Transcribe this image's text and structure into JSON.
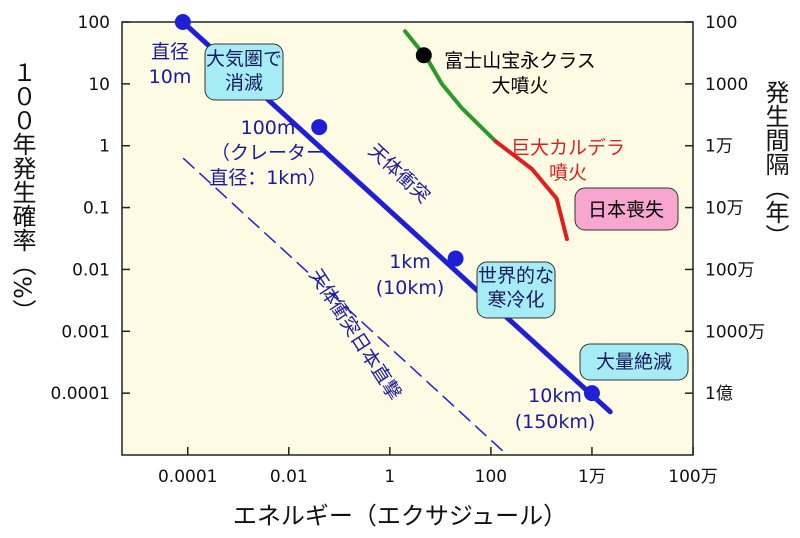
{
  "chart_data": {
    "type": "line",
    "xlabel": "エネルギー（エクサジュール）",
    "ylabel": "１００年発生確率（%）",
    "y2label": "発生間隔（年）",
    "log_x": true,
    "log_y": true,
    "xlim": [
      5e-06,
      1000000
    ],
    "ylim": [
      1e-05,
      100
    ],
    "y2lim": [
      1000000000,
      100
    ],
    "xticks": [
      0.0001,
      0.01,
      1,
      100,
      {
        "value": 10000,
        "label": "1万"
      },
      {
        "value": 1000000,
        "label": "100万"
      }
    ],
    "yticks": [
      100,
      10,
      1,
      0.1,
      0.01,
      0.001,
      0.0001
    ],
    "y2ticks": [
      100,
      1000,
      {
        "value": 10000,
        "label": "1万"
      },
      {
        "value": 100000,
        "label": "10万"
      },
      {
        "value": 1000000,
        "label": "100万"
      },
      {
        "value": 10000000,
        "label": "1000万"
      },
      {
        "value": 100000000,
        "label": "1億"
      }
    ],
    "background": "#fdfbe3",
    "series": [
      {
        "x": [
          8e-05,
          23000
        ],
        "values": [
          100,
          5e-05
        ],
        "color": "#1f1fd6",
        "width": 5
      },
      {
        "x": [
          2,
          5.4,
          10.7,
          27,
          125
        ],
        "values": [
          71,
          26,
          10,
          4,
          1.17
        ],
        "color": "#2a9a2a",
        "width": 4
      },
      {
        "x": [
          125,
          650,
          2000,
          3200
        ],
        "values": [
          1.17,
          0.42,
          0.14,
          0.031
        ],
        "color": "#e01e1e",
        "width": 4
      },
      {
        "x": [
          8.3e-05,
          210
        ],
        "values": [
          0.62,
          1e-05
        ],
        "color": "#1f1fd6",
        "width": 1.5,
        "dash": true
      }
    ],
    "points": [
      {
        "x": [
          8e-05,
          0.04,
          20,
          10000
        ],
        "values": [
          100,
          2,
          0.015,
          0.0001
        ],
        "color": "#1f1fd6"
      },
      {
        "x": [
          4.7
        ],
        "values": [
          29
        ],
        "color": "#000000"
      }
    ],
    "annotations": [
      {
        "lines": [
          "直径",
          "10m"
        ],
        "color": "#1a1aa0"
      },
      {
        "lines": [
          "大気圏で",
          "消滅"
        ],
        "color": "#1a1a60",
        "box": "#a6ecf5"
      },
      {
        "lines": [
          "100m",
          "（クレーター",
          "直径：1km）"
        ],
        "color": "#1a1aa0"
      },
      {
        "lines": [
          "天体衝突"
        ],
        "color": "#1a1aa0"
      },
      {
        "lines": [
          "1km",
          "(10km)"
        ],
        "color": "#1a1aa0"
      },
      {
        "lines": [
          "世界的な",
          "寒冷化"
        ],
        "color": "#1a1a60",
        "box": "#a6ecf5"
      },
      {
        "lines": [
          "大量絶滅"
        ],
        "color": "#1a1a60",
        "box": "#a6ecf5"
      },
      {
        "lines": [
          "10km",
          "(150km)"
        ],
        "color": "#1a1aa0"
      },
      {
        "lines": [
          "天体衝突日本直撃"
        ],
        "color": "#1a1aa0"
      },
      {
        "lines": [
          "富士山宝永クラス",
          "大噴火"
        ],
        "color": "#000000"
      },
      {
        "lines": [
          "巨大カルデラ",
          "噴火"
        ],
        "color": "#e01e1e"
      },
      {
        "lines": [
          "日本喪失"
        ],
        "color": "#000000",
        "box": "#f7a6cf"
      }
    ]
  }
}
